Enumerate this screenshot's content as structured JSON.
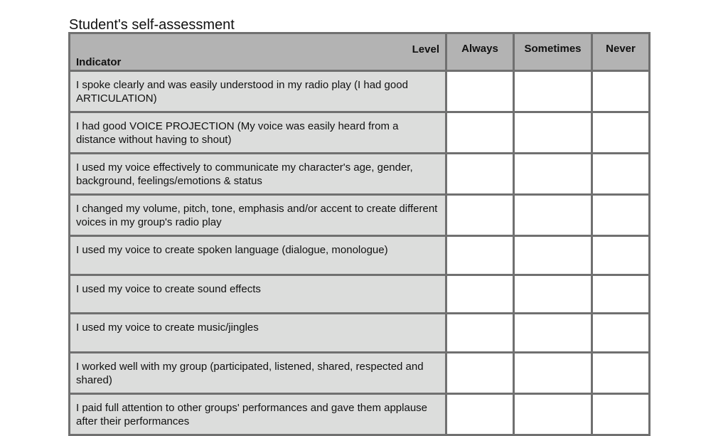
{
  "title": "Student's self-assessment",
  "table": {
    "level_label": "Level",
    "indicator_label": "Indicator",
    "columns": [
      "Always",
      "Sometimes",
      "Never"
    ],
    "rows": [
      "I spoke clearly and was easily understood in my radio play (I had good ARTICULATION)",
      "I had good VOICE PROJECTION (My voice was easily heard from a distance without having to shout)",
      "I used my voice effectively to communicate my character's age, gender, background, feelings/emotions & status",
      "I changed my volume, pitch, tone, emphasis and/or accent to create different voices in my group's radio play",
      "I used my voice to create spoken language (dialogue, monologue)",
      "I used my voice to create sound effects",
      "I used my voice to create music/jingles",
      "I worked well with my group (participated, listened, shared, respected and shared)",
      "I paid full attention to other groups' performances and gave them applause after their performances"
    ]
  }
}
